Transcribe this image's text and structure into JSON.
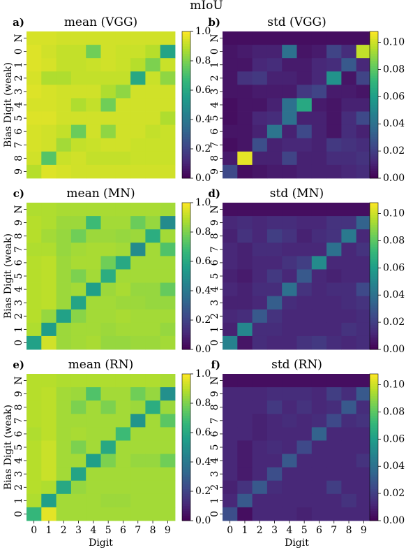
{
  "suptitle": "mIoU",
  "colormap": {
    "name": "viridis",
    "stops": [
      "#440154",
      "#482878",
      "#3e4989",
      "#31688e",
      "#26828e",
      "#1f9e89",
      "#35b779",
      "#6ece58",
      "#b5de2b",
      "#fde725"
    ]
  },
  "chart_data": [
    {
      "type": "heatmap",
      "panel": "a)",
      "title": "mean (VGG)",
      "xlabel": "",
      "ylabel": "Bias Digit (weak)",
      "rows": [
        "N",
        "0",
        "1",
        "2",
        "3",
        "4",
        "5",
        "6",
        "7",
        "8",
        "9"
      ],
      "cols": [],
      "vmin": 0.0,
      "vmax": 1.0,
      "colorbar_ticks": [
        "0.0",
        "0.2",
        "0.4",
        "0.6",
        "0.8",
        "1.0"
      ],
      "values": [
        [
          0.94,
          0.94,
          0.93,
          0.93,
          0.93,
          0.93,
          0.93,
          0.93,
          0.93,
          0.93
        ],
        [
          0.95,
          0.93,
          0.91,
          0.91,
          0.78,
          0.93,
          0.92,
          0.92,
          0.89,
          0.58
        ],
        [
          0.95,
          0.94,
          0.91,
          0.91,
          0.92,
          0.93,
          0.92,
          0.89,
          0.8,
          0.92
        ],
        [
          0.94,
          0.88,
          0.88,
          0.91,
          0.91,
          0.91,
          0.91,
          0.6,
          0.92,
          0.83
        ],
        [
          0.95,
          0.94,
          0.93,
          0.93,
          0.93,
          0.88,
          0.83,
          0.93,
          0.93,
          0.93
        ],
        [
          0.94,
          0.94,
          0.93,
          0.88,
          0.91,
          0.78,
          0.93,
          0.93,
          0.93,
          0.93
        ],
        [
          0.95,
          0.95,
          0.93,
          0.93,
          0.93,
          0.93,
          0.93,
          0.93,
          0.93,
          0.88
        ],
        [
          0.94,
          0.93,
          0.91,
          0.77,
          0.93,
          0.83,
          0.93,
          0.93,
          0.91,
          0.92
        ],
        [
          0.94,
          0.93,
          0.86,
          0.91,
          0.92,
          0.93,
          0.93,
          0.92,
          0.92,
          0.92
        ],
        [
          0.93,
          0.73,
          0.92,
          0.93,
          0.91,
          0.91,
          0.91,
          0.92,
          0.92,
          0.92
        ],
        [
          0.89,
          0.95,
          0.94,
          0.93,
          0.93,
          0.93,
          0.93,
          0.93,
          0.93,
          0.93
        ]
      ]
    },
    {
      "type": "heatmap",
      "panel": "b)",
      "title": "std (VGG)",
      "xlabel": "",
      "ylabel": "",
      "rows": [
        "N",
        "0",
        "1",
        "2",
        "3",
        "4",
        "5",
        "6",
        "7",
        "8",
        "9"
      ],
      "cols": [],
      "vmin": 0.0,
      "vmax": 0.108,
      "colorbar_ticks": [
        "0.00",
        "0.02",
        "0.04",
        "0.06",
        "0.08",
        "0.10"
      ],
      "values": [
        [
          0.004,
          0.004,
          0.004,
          0.004,
          0.004,
          0.004,
          0.004,
          0.004,
          0.004,
          0.004
        ],
        [
          0.006,
          0.008,
          0.01,
          0.01,
          0.04,
          0.006,
          0.008,
          0.022,
          0.014,
          0.098
        ],
        [
          0.006,
          0.006,
          0.012,
          0.014,
          0.008,
          0.008,
          0.012,
          0.014,
          0.03,
          0.012
        ],
        [
          0.006,
          0.016,
          0.018,
          0.01,
          0.01,
          0.008,
          0.012,
          0.055,
          0.006,
          0.022
        ],
        [
          0.006,
          0.006,
          0.008,
          0.008,
          0.008,
          0.018,
          0.022,
          0.008,
          0.008,
          0.006
        ],
        [
          0.004,
          0.006,
          0.006,
          0.01,
          0.04,
          0.065,
          0.008,
          0.006,
          0.01,
          0.01
        ],
        [
          0.004,
          0.006,
          0.012,
          0.014,
          0.04,
          0.01,
          0.01,
          0.006,
          0.014,
          0.024
        ],
        [
          0.006,
          0.006,
          0.01,
          0.042,
          0.01,
          0.024,
          0.01,
          0.006,
          0.014,
          0.01
        ],
        [
          0.004,
          0.006,
          0.026,
          0.01,
          0.012,
          0.012,
          0.01,
          0.018,
          0.016,
          0.014
        ],
        [
          0.008,
          0.104,
          0.01,
          0.01,
          0.022,
          0.01,
          0.01,
          0.014,
          0.014,
          0.016
        ],
        [
          0.024,
          0.004,
          0.006,
          0.008,
          0.008,
          0.01,
          0.01,
          0.01,
          0.012,
          0.014
        ]
      ]
    },
    {
      "type": "heatmap",
      "panel": "c)",
      "title": "mean (MN)",
      "xlabel": "",
      "ylabel": "Bias Digit (weak)",
      "rows": [
        "N",
        "9",
        "8",
        "7",
        "6",
        "5",
        "4",
        "3",
        "2",
        "1",
        "0"
      ],
      "cols": [],
      "vmin": 0.0,
      "vmax": 1.0,
      "colorbar_ticks": [
        "0.0",
        "0.2",
        "0.4",
        "0.6",
        "0.8",
        "1.0"
      ],
      "values": [
        [
          0.88,
          0.88,
          0.87,
          0.87,
          0.87,
          0.87,
          0.87,
          0.87,
          0.87,
          0.86
        ],
        [
          0.89,
          0.88,
          0.85,
          0.85,
          0.68,
          0.86,
          0.86,
          0.77,
          0.84,
          0.48
        ],
        [
          0.89,
          0.86,
          0.84,
          0.78,
          0.85,
          0.85,
          0.84,
          0.85,
          0.62,
          0.86
        ],
        [
          0.88,
          0.88,
          0.84,
          0.86,
          0.87,
          0.87,
          0.86,
          0.48,
          0.86,
          0.72
        ],
        [
          0.89,
          0.9,
          0.85,
          0.87,
          0.87,
          0.78,
          0.6,
          0.86,
          0.86,
          0.86
        ],
        [
          0.89,
          0.9,
          0.85,
          0.8,
          0.86,
          0.62,
          0.86,
          0.86,
          0.86,
          0.86
        ],
        [
          0.89,
          0.9,
          0.85,
          0.86,
          0.56,
          0.85,
          0.87,
          0.84,
          0.84,
          0.76
        ],
        [
          0.89,
          0.9,
          0.85,
          0.58,
          0.86,
          0.86,
          0.85,
          0.85,
          0.84,
          0.84
        ],
        [
          0.89,
          0.84,
          0.57,
          0.82,
          0.86,
          0.86,
          0.87,
          0.86,
          0.86,
          0.86
        ],
        [
          0.88,
          0.55,
          0.85,
          0.86,
          0.86,
          0.85,
          0.86,
          0.86,
          0.86,
          0.84
        ],
        [
          0.57,
          0.93,
          0.85,
          0.86,
          0.87,
          0.84,
          0.84,
          0.85,
          0.85,
          0.86
        ]
      ]
    },
    {
      "type": "heatmap",
      "panel": "d)",
      "title": "std (MN)",
      "xlabel": "",
      "ylabel": "",
      "rows": [
        "N",
        "9",
        "8",
        "7",
        "6",
        "5",
        "4",
        "3",
        "2",
        "1",
        "0"
      ],
      "cols": [],
      "vmin": 0.0,
      "vmax": 0.108,
      "colorbar_ticks": [
        "0.00",
        "0.02",
        "0.04",
        "0.06",
        "0.08",
        "0.10"
      ],
      "values": [
        [
          0.004,
          0.004,
          0.004,
          0.004,
          0.004,
          0.004,
          0.004,
          0.004,
          0.004,
          0.004
        ],
        [
          0.012,
          0.014,
          0.012,
          0.014,
          0.014,
          0.012,
          0.012,
          0.016,
          0.016,
          0.034
        ],
        [
          0.01,
          0.016,
          0.012,
          0.02,
          0.016,
          0.01,
          0.014,
          0.016,
          0.044,
          0.012
        ],
        [
          0.012,
          0.01,
          0.014,
          0.014,
          0.012,
          0.012,
          0.012,
          0.04,
          0.012,
          0.016
        ],
        [
          0.012,
          0.01,
          0.012,
          0.012,
          0.016,
          0.02,
          0.052,
          0.012,
          0.012,
          0.012
        ],
        [
          0.01,
          0.008,
          0.012,
          0.018,
          0.012,
          0.03,
          0.012,
          0.01,
          0.012,
          0.012
        ],
        [
          0.012,
          0.01,
          0.014,
          0.014,
          0.04,
          0.016,
          0.012,
          0.014,
          0.014,
          0.024
        ],
        [
          0.01,
          0.01,
          0.012,
          0.032,
          0.014,
          0.012,
          0.012,
          0.012,
          0.014,
          0.016
        ],
        [
          0.012,
          0.014,
          0.03,
          0.016,
          0.012,
          0.012,
          0.012,
          0.012,
          0.012,
          0.014
        ],
        [
          0.01,
          0.05,
          0.014,
          0.014,
          0.012,
          0.012,
          0.012,
          0.012,
          0.016,
          0.014
        ],
        [
          0.048,
          0.006,
          0.014,
          0.012,
          0.012,
          0.016,
          0.018,
          0.014,
          0.012,
          0.014
        ]
      ]
    },
    {
      "type": "heatmap",
      "panel": "e)",
      "title": "mean (RN)",
      "xlabel": "Digit",
      "ylabel": "Bias Digit (weak)",
      "rows": [
        "N",
        "9",
        "8",
        "7",
        "6",
        "5",
        "4",
        "3",
        "2",
        "1",
        "0"
      ],
      "cols": [
        "0",
        "1",
        "2",
        "3",
        "4",
        "5",
        "6",
        "7",
        "8",
        "9"
      ],
      "vmin": 0.0,
      "vmax": 1.0,
      "colorbar_ticks": [
        "0.0",
        "0.2",
        "0.4",
        "0.6",
        "0.8",
        "1.0"
      ],
      "values": [
        [
          0.89,
          0.89,
          0.88,
          0.88,
          0.88,
          0.88,
          0.88,
          0.88,
          0.88,
          0.87
        ],
        [
          0.89,
          0.9,
          0.86,
          0.85,
          0.72,
          0.86,
          0.86,
          0.78,
          0.84,
          0.5
        ],
        [
          0.89,
          0.9,
          0.86,
          0.8,
          0.86,
          0.8,
          0.86,
          0.85,
          0.62,
          0.85
        ],
        [
          0.89,
          0.9,
          0.86,
          0.86,
          0.86,
          0.86,
          0.86,
          0.52,
          0.86,
          0.74
        ],
        [
          0.88,
          0.9,
          0.86,
          0.87,
          0.86,
          0.86,
          0.68,
          0.86,
          0.86,
          0.86
        ],
        [
          0.89,
          0.92,
          0.86,
          0.8,
          0.86,
          0.6,
          0.86,
          0.86,
          0.86,
          0.86
        ],
        [
          0.89,
          0.92,
          0.86,
          0.86,
          0.56,
          0.8,
          0.86,
          0.84,
          0.84,
          0.78
        ],
        [
          0.89,
          0.92,
          0.86,
          0.58,
          0.86,
          0.86,
          0.86,
          0.86,
          0.86,
          0.86
        ],
        [
          0.89,
          0.88,
          0.6,
          0.84,
          0.86,
          0.86,
          0.86,
          0.86,
          0.86,
          0.86
        ],
        [
          0.88,
          0.56,
          0.86,
          0.86,
          0.86,
          0.85,
          0.85,
          0.86,
          0.86,
          0.86
        ],
        [
          0.66,
          0.96,
          0.86,
          0.86,
          0.86,
          0.86,
          0.86,
          0.86,
          0.86,
          0.86
        ]
      ]
    },
    {
      "type": "heatmap",
      "panel": "f)",
      "title": "std (RN)",
      "xlabel": "Digit",
      "ylabel": "",
      "rows": [
        "N",
        "9",
        "8",
        "7",
        "6",
        "5",
        "4",
        "3",
        "2",
        "1",
        "0"
      ],
      "cols": [
        "0",
        "1",
        "2",
        "3",
        "4",
        "5",
        "6",
        "7",
        "8",
        "9"
      ],
      "vmin": 0.0,
      "vmax": 0.108,
      "colorbar_ticks": [
        "0.00",
        "0.02",
        "0.04",
        "0.06",
        "0.08",
        "0.10"
      ],
      "values": [
        [
          0.004,
          0.004,
          0.004,
          0.004,
          0.004,
          0.004,
          0.004,
          0.004,
          0.004,
          0.004
        ],
        [
          0.012,
          0.012,
          0.012,
          0.014,
          0.014,
          0.014,
          0.012,
          0.02,
          0.014,
          0.03
        ],
        [
          0.012,
          0.012,
          0.012,
          0.018,
          0.012,
          0.016,
          0.012,
          0.014,
          0.03,
          0.014
        ],
        [
          0.012,
          0.012,
          0.01,
          0.012,
          0.014,
          0.012,
          0.014,
          0.024,
          0.014,
          0.016
        ],
        [
          0.012,
          0.012,
          0.01,
          0.012,
          0.012,
          0.012,
          0.034,
          0.012,
          0.012,
          0.012
        ],
        [
          0.012,
          0.008,
          0.012,
          0.014,
          0.012,
          0.024,
          0.012,
          0.012,
          0.012,
          0.012
        ],
        [
          0.012,
          0.008,
          0.012,
          0.012,
          0.03,
          0.012,
          0.012,
          0.012,
          0.012,
          0.016
        ],
        [
          0.012,
          0.008,
          0.012,
          0.026,
          0.012,
          0.012,
          0.012,
          0.012,
          0.012,
          0.012
        ],
        [
          0.01,
          0.016,
          0.03,
          0.014,
          0.012,
          0.012,
          0.012,
          0.02,
          0.012,
          0.012
        ],
        [
          0.012,
          0.03,
          0.012,
          0.012,
          0.012,
          0.012,
          0.012,
          0.012,
          0.016,
          0.012
        ],
        [
          0.026,
          0.004,
          0.012,
          0.012,
          0.012,
          0.01,
          0.012,
          0.012,
          0.012,
          0.012
        ]
      ]
    }
  ]
}
